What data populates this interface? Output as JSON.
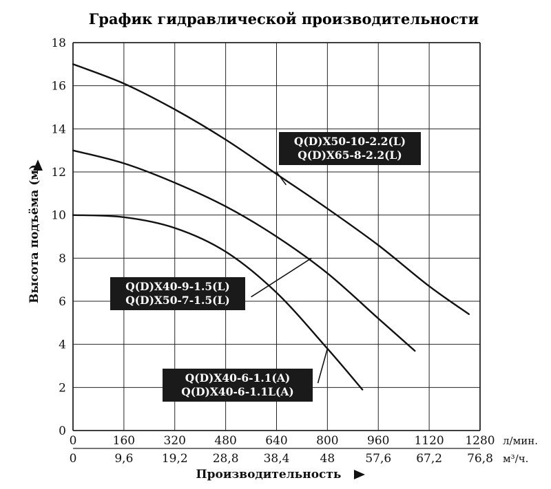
{
  "chart_data": {
    "type": "line",
    "title": "График гидравлической производительности",
    "xlabel": "Производительность",
    "ylabel": "Высота подъёма (м)",
    "x_unit_primary": "л/мин.",
    "x_unit_secondary": "м³/ч.",
    "xlim": [
      0,
      1280
    ],
    "ylim": [
      0,
      18
    ],
    "x_ticks": [
      0,
      160,
      320,
      480,
      640,
      800,
      960,
      1120,
      1280
    ],
    "x_ticks_secondary": [
      "0",
      "9,6",
      "19,2",
      "28,8",
      "38,4",
      "48",
      "57,6",
      "67,2",
      "76,8"
    ],
    "y_ticks": [
      0,
      2,
      4,
      6,
      8,
      10,
      12,
      14,
      16,
      18
    ],
    "grid": true,
    "series": [
      {
        "name": "",
        "labels": [
          "Q(D)X50-10-2.2(L)",
          "Q(D)X65-8-2.2(L)"
        ],
        "x": [
          0,
          160,
          320,
          480,
          640,
          800,
          960,
          1120,
          1245
        ],
        "y": [
          17,
          16.1,
          14.9,
          13.5,
          11.9,
          10.3,
          8.6,
          6.7,
          5.4
        ]
      },
      {
        "name": "",
        "labels": [
          "Q(D)X40-9-1.5(L)",
          "Q(D)X50-7-1.5(L)"
        ],
        "x": [
          0,
          160,
          320,
          480,
          640,
          800,
          960,
          1075
        ],
        "y": [
          13,
          12.4,
          11.5,
          10.4,
          9.0,
          7.3,
          5.2,
          3.7
        ]
      },
      {
        "name": "",
        "labels": [
          "Q(D)X40-6-1.1(A)",
          "Q(D)X40-6-1.1L(A)"
        ],
        "x": [
          0,
          160,
          320,
          480,
          640,
          800,
          910
        ],
        "y": [
          10,
          9.9,
          9.4,
          8.3,
          6.4,
          3.8,
          1.9
        ]
      }
    ]
  }
}
